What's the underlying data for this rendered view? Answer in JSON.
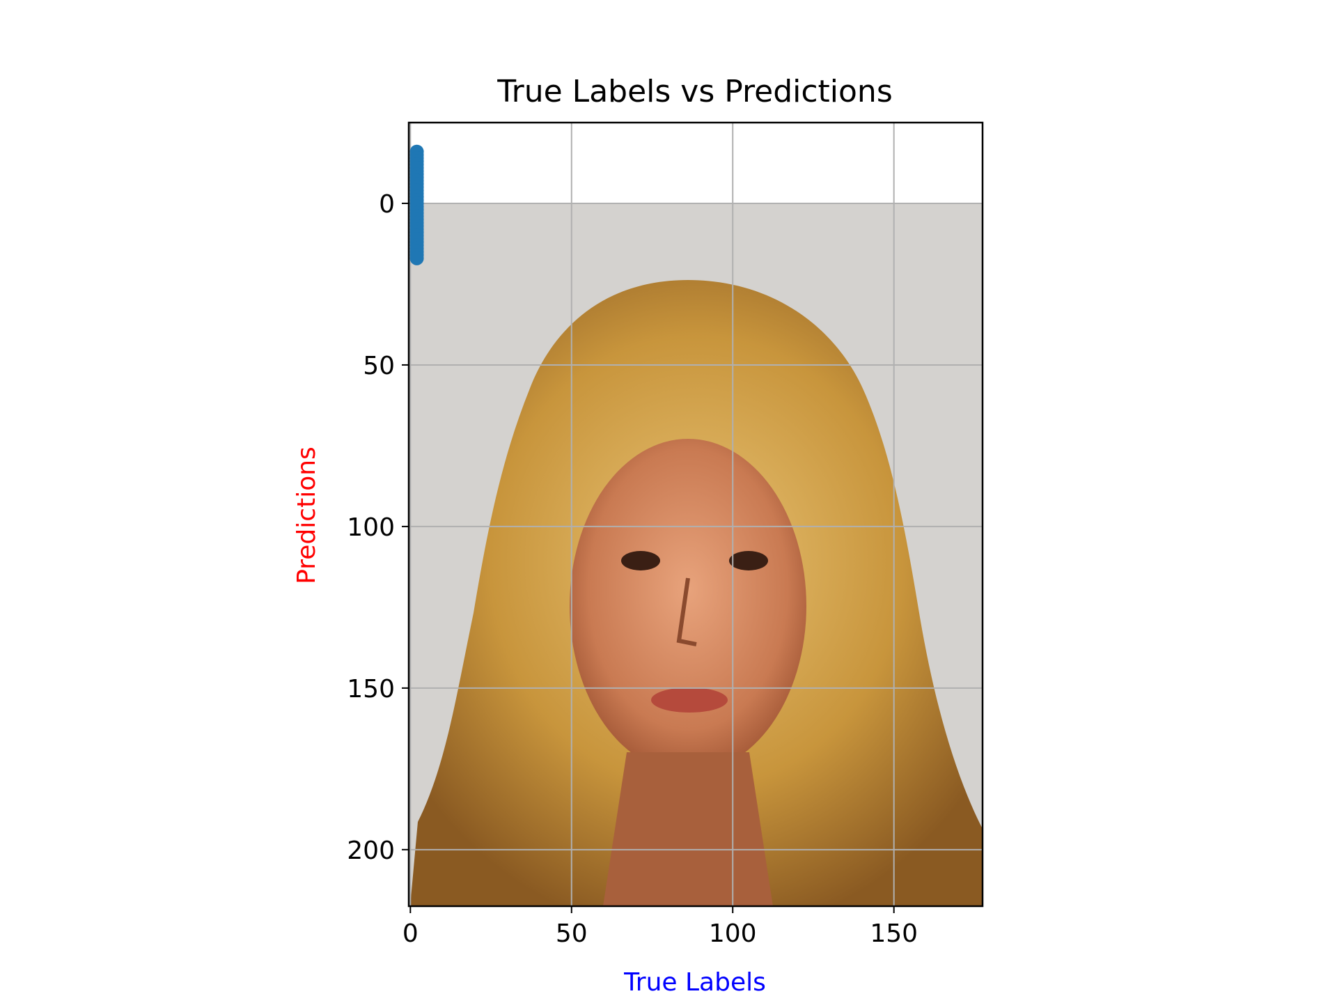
{
  "chart_data": {
    "type": "scatter",
    "title": "True Labels vs Predictions",
    "xlabel": "True Labels",
    "ylabel": "Predictions",
    "xlabel_color": "#0000ff",
    "ylabel_color": "#ff0000",
    "xlim": [
      -0.5,
      177.5
    ],
    "ylim": [
      217.5,
      -25
    ],
    "y_inverted": true,
    "grid": true,
    "xticks": [
      0,
      50,
      100,
      150
    ],
    "yticks": [
      0,
      50,
      100,
      150,
      200
    ],
    "background_image": "portrait-photo",
    "image_extent": {
      "x": [
        -0.5,
        177.5
      ],
      "y": [
        217.5,
        -0.5
      ]
    },
    "marker_color": "#1f77b4",
    "points": [
      {
        "x": 2,
        "y": -16
      },
      {
        "x": 2,
        "y": -15
      },
      {
        "x": 2,
        "y": -14
      },
      {
        "x": 2,
        "y": -13
      },
      {
        "x": 2,
        "y": -12
      },
      {
        "x": 2,
        "y": -11
      },
      {
        "x": 2,
        "y": -10
      },
      {
        "x": 2,
        "y": -9
      },
      {
        "x": 2,
        "y": -8
      },
      {
        "x": 2,
        "y": -7
      },
      {
        "x": 2,
        "y": -6
      },
      {
        "x": 2,
        "y": -5
      },
      {
        "x": 2,
        "y": -4
      },
      {
        "x": 2,
        "y": -3
      },
      {
        "x": 2,
        "y": -2
      },
      {
        "x": 2,
        "y": -1
      },
      {
        "x": 2,
        "y": 0
      },
      {
        "x": 2,
        "y": 1
      },
      {
        "x": 2,
        "y": 2
      },
      {
        "x": 2,
        "y": 3
      },
      {
        "x": 2,
        "y": 4
      },
      {
        "x": 2,
        "y": 5
      },
      {
        "x": 2,
        "y": 6
      },
      {
        "x": 2,
        "y": 7
      },
      {
        "x": 2,
        "y": 8
      },
      {
        "x": 2,
        "y": 9
      },
      {
        "x": 2,
        "y": 10
      },
      {
        "x": 2,
        "y": 11
      },
      {
        "x": 2,
        "y": 12
      },
      {
        "x": 2,
        "y": 13
      },
      {
        "x": 2,
        "y": 14
      },
      {
        "x": 2,
        "y": 15
      },
      {
        "x": 2,
        "y": 16
      },
      {
        "x": 2,
        "y": 17
      }
    ]
  }
}
